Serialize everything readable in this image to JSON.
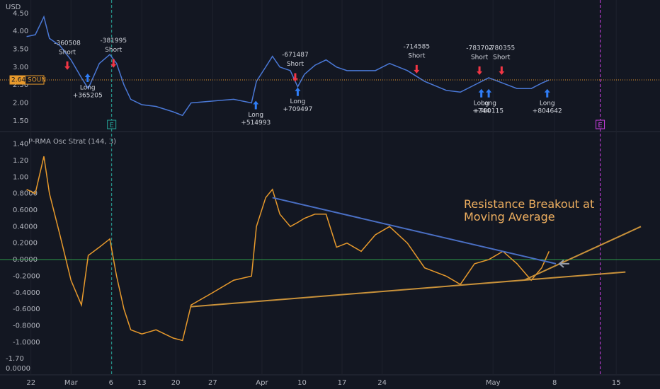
{
  "chart_data": [
    {
      "type": "line",
      "y_label": "USD",
      "x": [
        0.3,
        1.7,
        3.1,
        4.0,
        5.7,
        7.5,
        9.2,
        10.3,
        12.1,
        13.8,
        14.9,
        16.1,
        17.2,
        19.0,
        21.3,
        24.1,
        25.6,
        27.0,
        30.5,
        33.9,
        36.8,
        37.6,
        39.1,
        40.2,
        41.4,
        43.1,
        44.3,
        45.4,
        47.1,
        48.9,
        50.6,
        52.3,
        54.6,
        56.9,
        59.2,
        62.1,
        64.9,
        68.4,
        70.7,
        73.0,
        75.3,
        77.6,
        79.9,
        82.2,
        83.9,
        85.1
      ],
      "series": [
        {
          "name": "SOUN",
          "color": "#4a78d6",
          "values": [
            3.85,
            3.9,
            4.4,
            3.8,
            3.6,
            3.2,
            2.7,
            2.4,
            3.1,
            3.35,
            3.1,
            2.5,
            2.1,
            1.95,
            1.9,
            1.75,
            1.65,
            2.0,
            2.05,
            2.1,
            2.0,
            2.6,
            3.0,
            3.3,
            3.0,
            2.9,
            2.45,
            2.8,
            3.05,
            3.2,
            3.0,
            2.9,
            2.9,
            2.9,
            3.1,
            2.9,
            2.6,
            2.35,
            2.3,
            2.5,
            2.7,
            2.55,
            2.4,
            2.4,
            2.55,
            2.64
          ]
        }
      ],
      "xlim": [
        0,
        100
      ],
      "xticks": [
        {
          "value": 1,
          "label": "22"
        },
        {
          "value": 7.5,
          "label": "Mar"
        },
        {
          "value": 14,
          "label": "6"
        },
        {
          "value": 19,
          "label": "13"
        },
        {
          "value": 24.5,
          "label": "20"
        },
        {
          "value": 30.5,
          "label": "27"
        },
        {
          "value": 38.5,
          "label": "Apr"
        },
        {
          "value": 45,
          "label": "10"
        },
        {
          "value": 51.5,
          "label": "17"
        },
        {
          "value": 58,
          "label": "24"
        },
        {
          "value": 76,
          "label": "May"
        },
        {
          "value": 86,
          "label": "8"
        },
        {
          "value": 96,
          "label": "15"
        }
      ],
      "ylim": [
        1.22,
        4.87
      ],
      "yticks": [
        {
          "value": 1.5,
          "label": "1.50"
        },
        {
          "value": 2,
          "label": "2.00"
        },
        {
          "value": 2.5,
          "label": "2.50"
        },
        {
          "value": 3,
          "label": "3.00"
        },
        {
          "value": 3.5,
          "label": "3.50"
        },
        {
          "value": 4,
          "label": "4.00"
        },
        {
          "value": 4.5,
          "label": "4.50"
        }
      ],
      "events": [
        {
          "x": 14.1,
          "label": "E",
          "color": "#26a69a"
        },
        {
          "x": 93.4,
          "label": "E",
          "color": "#d040e8"
        }
      ],
      "signals": [
        {
          "side": "Short",
          "amount": "-360508",
          "x": 6.9,
          "price": 3.0
        },
        {
          "side": "Short",
          "amount": "-381995",
          "x": 14.4,
          "price": 3.06
        },
        {
          "side": "Long",
          "amount": "+365205",
          "x": 10.2,
          "price": 2.74
        },
        {
          "side": "Long",
          "amount": "+514993",
          "x": 37.5,
          "price": 1.98
        },
        {
          "side": "Short",
          "amount": "-671487",
          "x": 43.9,
          "price": 2.67
        },
        {
          "side": "Long",
          "amount": "+709497",
          "x": 44.3,
          "price": 2.35
        },
        {
          "side": "Short",
          "amount": "-714585",
          "x": 63.6,
          "price": 2.9
        },
        {
          "side": "Short",
          "amount": "-783702",
          "x": 73.8,
          "price": 2.86
        },
        {
          "side": "Short",
          "amount": "-780355",
          "x": 77.4,
          "price": 2.86
        },
        {
          "side": "Long",
          "amount": "+744",
          "x": 74.1,
          "price": 2.31
        },
        {
          "side": "Long",
          "amount": "+780115",
          "x": 75.3,
          "price": 2.31
        },
        {
          "side": "Long",
          "amount": "+804642",
          "x": 84.8,
          "price": 2.31
        }
      ]
    },
    {
      "type": "line",
      "title": "P-RMA Osc Strat (144, 3)",
      "series": [
        {
          "color": "#e89a2c",
          "values": [
            0.85,
            0.8,
            1.25,
            0.8,
            0.3,
            -0.25,
            -0.55,
            0.05,
            0.15,
            0.25,
            -0.2,
            -0.6,
            -0.85,
            -0.9,
            -0.85,
            -0.95,
            -0.98,
            -0.55,
            -0.4,
            -0.25,
            -0.2,
            0.4,
            0.75,
            0.85,
            0.55,
            0.4,
            0.45,
            0.5,
            0.55,
            0.55,
            0.15,
            0.2,
            0.1,
            0.3,
            0.4,
            0.2,
            -0.1,
            -0.2,
            -0.3,
            -0.05,
            0.0,
            0.1,
            -0.05,
            -0.25,
            -0.1,
            0.1
          ]
        }
      ],
      "ylim": [
        -1.438,
        1.533
      ],
      "yticks": [
        {
          "value": 1.4,
          "label": "1.40"
        },
        {
          "value": 1.2,
          "label": "1.20"
        },
        {
          "value": 1.0,
          "label": "1.00"
        },
        {
          "value": 0.8,
          "label": "0.8000"
        },
        {
          "value": 0.6,
          "label": "0.6000"
        },
        {
          "value": 0.4,
          "label": "0.4000"
        },
        {
          "value": 0.2,
          "label": "0.2000"
        },
        {
          "value": 0,
          "label": "0.0000"
        },
        {
          "value": -0.2,
          "label": "-0.2000"
        },
        {
          "value": -0.4,
          "label": "-0.4000"
        },
        {
          "value": -0.6,
          "label": "-0.6000"
        },
        {
          "value": -0.8,
          "label": "-0.8000"
        },
        {
          "value": -1.0,
          "label": "-1.0000"
        }
      ],
      "extra_labels": [
        "-1.70",
        "0.0000"
      ],
      "zero_line_color": "#2e9e4a",
      "trendlines": [
        {
          "color": "#4a6fc4",
          "x": [
            40.2,
            86.2
          ],
          "y": [
            0.75,
            -0.05
          ]
        },
        {
          "color": "#c8913a",
          "x": [
            27.0,
            97.5
          ],
          "y": [
            -0.57,
            -0.15
          ]
        },
        {
          "color": "#c8913a",
          "x": [
            81.0,
            100
          ],
          "y": [
            -0.25,
            0.4
          ]
        }
      ],
      "annotation": "Resistance Breakout at Moving Average"
    }
  ]
}
